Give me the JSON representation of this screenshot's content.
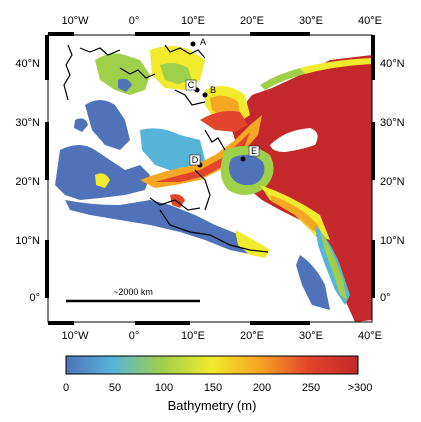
{
  "map": {
    "type": "bathymetry_map",
    "longitude_labels": [
      "10°W",
      "0°",
      "10°E",
      "20°E",
      "30°E",
      "40°E"
    ],
    "latitude_labels": [
      "40°N",
      "30°N",
      "20°N",
      "10°N",
      "0°"
    ],
    "scale_bar_label": "~2000 km",
    "sites": [
      {
        "id": "A",
        "label": "A"
      },
      {
        "id": "B",
        "label": "B"
      },
      {
        "id": "C",
        "label": "C"
      },
      {
        "id": "D",
        "label": "D"
      },
      {
        "id": "E",
        "label": "E"
      }
    ]
  },
  "colorbar": {
    "title": "Bathymetry (m)",
    "tick_labels": [
      "0",
      "50",
      "100",
      "150",
      "200",
      "250",
      ">300"
    ],
    "min": 0,
    "max": 300,
    "colors": [
      "#4f72b8",
      "#56b4d8",
      "#9fd04a",
      "#f2ea2c",
      "#f5a623",
      "#d82c20",
      "#c0282a"
    ]
  }
}
